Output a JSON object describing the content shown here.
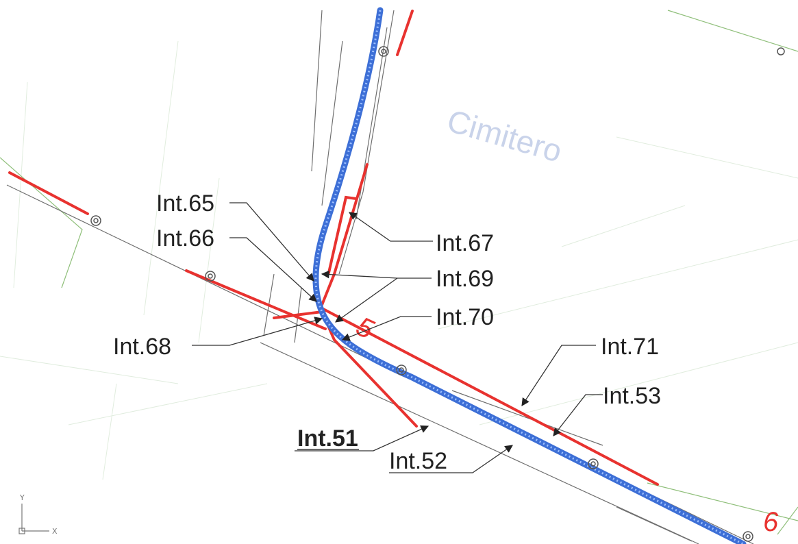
{
  "area_label": "Cimitero",
  "segment_numbers": {
    "s5": "5",
    "s6": "6"
  },
  "labels": {
    "int65": "Int.65",
    "int66": "Int.66",
    "int67": "Int.67",
    "int69": "Int.69",
    "int70": "Int.70",
    "int68": "Int.68",
    "int71": "Int.71",
    "int53": "Int.53",
    "int51": "Int.51",
    "int52": "Int.52"
  },
  "axis": {
    "y": "Y",
    "x": "X"
  },
  "colors": {
    "red_line": "#e8322f",
    "pipeline_blue": "#3d6fd6",
    "pipeline_dots": "#9ec0ff",
    "leader_black": "#333333",
    "thin_gray": "#6f6f6f",
    "faint_green": "#8fbf7a",
    "area_text": "#c9d3ea"
  }
}
